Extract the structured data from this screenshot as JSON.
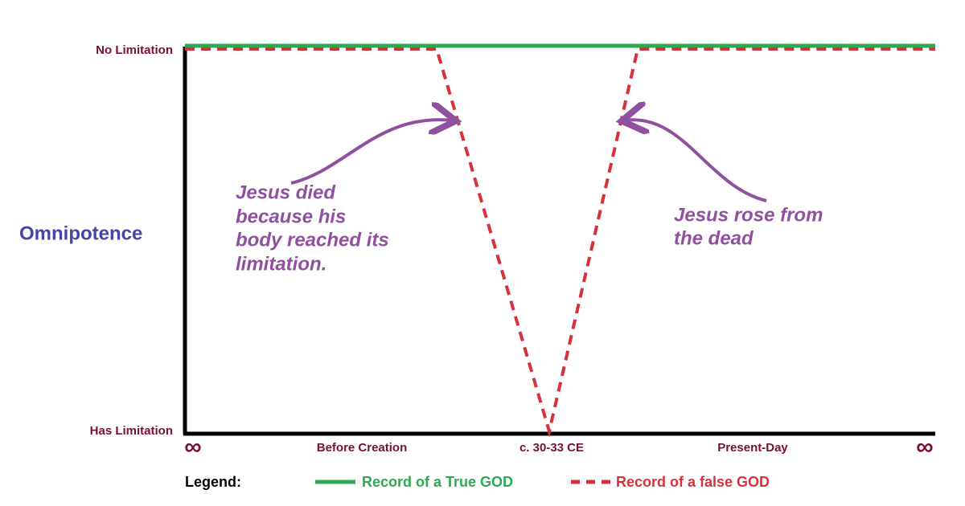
{
  "y_axis": {
    "title": "Omnipotence",
    "top_label": "No Limitation",
    "bottom_label": "Has Limitation"
  },
  "x_axis": {
    "labels": [
      "∞",
      "Before Creation",
      "c. 30-33 CE",
      "Present-Day",
      "∞"
    ]
  },
  "annotations": [
    {
      "lines": [
        "Jesus died",
        "because his",
        "body reached its",
        "limitation."
      ]
    },
    {
      "lines": [
        "Jesus rose from",
        "the dead"
      ]
    }
  ],
  "legend": {
    "title": "Legend:",
    "items": [
      "Record of a True GOD",
      "Record of a false GOD"
    ]
  }
}
